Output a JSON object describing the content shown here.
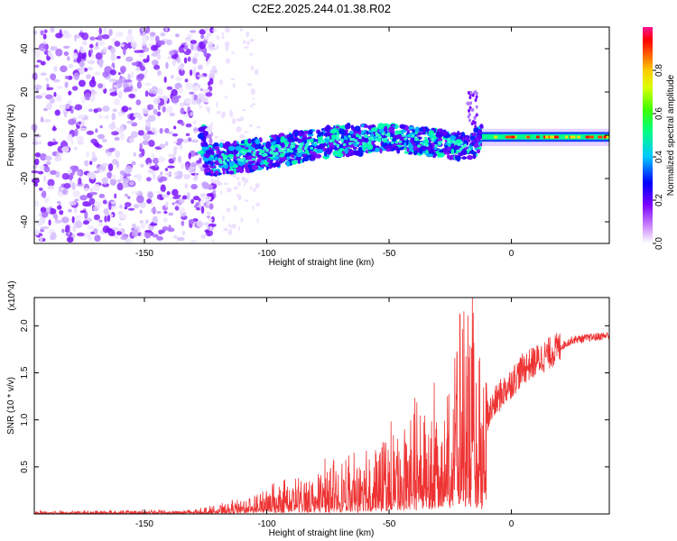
{
  "title": "C2E2.2025.244.01.38.R02",
  "chart_data": [
    {
      "type": "heatmap",
      "name": "spectrogram",
      "xlabel": "Height of straight line (km)",
      "ylabel": "Frequency (Hz)",
      "xlim": [
        -195,
        40
      ],
      "ylim": [
        -50,
        50
      ],
      "xticks": [
        -150,
        -100,
        -50,
        0
      ],
      "yticks": [
        -40,
        -20,
        0,
        20,
        40
      ],
      "colorbar": {
        "label": "Normalized spectral amplitude",
        "range": [
          0,
          1
        ],
        "ticks": [
          "0.0",
          "0.2",
          "0.4",
          "0.6",
          "0.8"
        ],
        "tick_values": [
          0.0,
          0.2,
          0.4,
          0.6,
          0.8
        ]
      },
      "signal_track": [
        {
          "x": -125,
          "y": -12
        },
        {
          "x": -110,
          "y": -10
        },
        {
          "x": -95,
          "y": -7
        },
        {
          "x": -80,
          "y": -4
        },
        {
          "x": -65,
          "y": -2
        },
        {
          "x": -50,
          "y": -1
        },
        {
          "x": -35,
          "y": -3
        },
        {
          "x": -22,
          "y": -5
        },
        {
          "x": -15,
          "y": -4
        },
        {
          "x": -10,
          "y": 0
        },
        {
          "x": 0,
          "y": -1
        },
        {
          "x": 20,
          "y": -1
        },
        {
          "x": 40,
          "y": -2
        }
      ],
      "noise_region_x": [
        -195,
        -125
      ]
    },
    {
      "type": "line",
      "name": "snr",
      "xlabel": "Height of straight line (km)",
      "ylabel": "SNR (10 * v/v)",
      "yscale_label": "(x10^4)",
      "xlim": [
        -195,
        40
      ],
      "ylim": [
        0,
        2.3
      ],
      "xticks": [
        -150,
        -100,
        -50,
        0
      ],
      "yticks": [
        0.5,
        1.0,
        1.5,
        2.0
      ],
      "ytick_labels": [
        "0.5",
        "1.0",
        "1.5",
        "2.0"
      ],
      "series": [
        {
          "name": "SNR",
          "color": "#ee3333",
          "envelope": [
            {
              "x": -195,
              "y": 0.02
            },
            {
              "x": -130,
              "y": 0.03
            },
            {
              "x": -115,
              "y": 0.08
            },
            {
              "x": -100,
              "y": 0.18
            },
            {
              "x": -80,
              "y": 0.3
            },
            {
              "x": -60,
              "y": 0.42
            },
            {
              "x": -45,
              "y": 0.6
            },
            {
              "x": -35,
              "y": 0.8
            },
            {
              "x": -25,
              "y": 1.15
            },
            {
              "x": -18,
              "y": 1.5
            },
            {
              "x": -12,
              "y": 0.95
            },
            {
              "x": -5,
              "y": 1.25
            },
            {
              "x": 5,
              "y": 1.55
            },
            {
              "x": 15,
              "y": 1.7
            },
            {
              "x": 25,
              "y": 1.85
            },
            {
              "x": 40,
              "y": 1.9
            }
          ]
        }
      ]
    }
  ]
}
